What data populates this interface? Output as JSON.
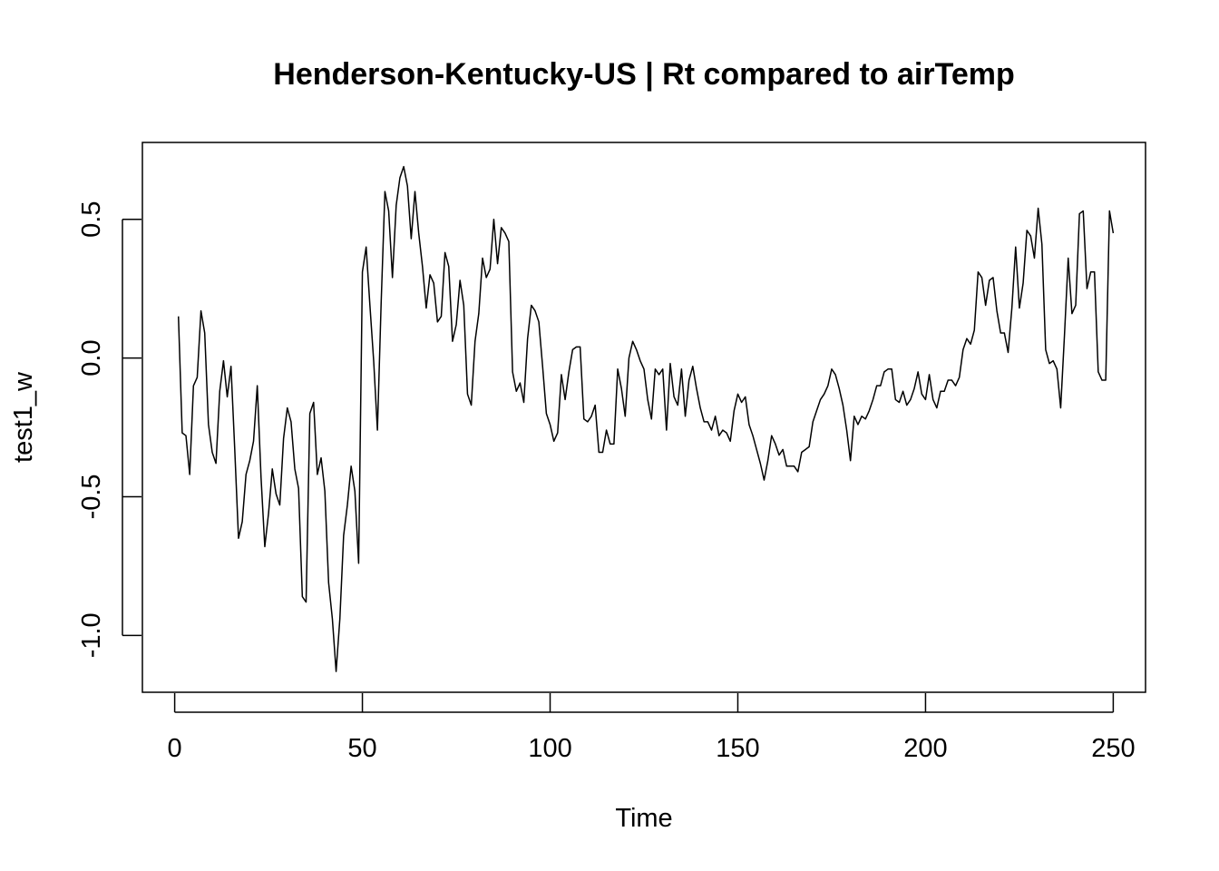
{
  "chart_data": {
    "type": "line",
    "title": "Henderson-Kentucky-US | Rt compared to airTemp",
    "xlabel": "Time",
    "ylabel": "test1_w",
    "xlim": [
      -8.6,
      258.6
    ],
    "ylim": [
      -1.205,
      0.777
    ],
    "x_ticks": [
      0,
      50,
      100,
      150,
      200,
      250
    ],
    "x_tick_labels": [
      "0",
      "50",
      "100",
      "150",
      "200",
      "250"
    ],
    "y_ticks": [
      -1.0,
      -0.5,
      0.0,
      0.5
    ],
    "y_tick_labels": [
      "-1.0",
      "-0.5",
      "0.0",
      "0.5"
    ],
    "grid": false,
    "legend": "none",
    "line_color": "#000000",
    "series": [
      {
        "values": [
          0.15,
          -0.27,
          -0.28,
          -0.42,
          -0.1,
          -0.07,
          0.17,
          0.09,
          -0.24,
          -0.34,
          -0.38,
          -0.12,
          -0.01,
          -0.14,
          -0.03,
          -0.33,
          -0.65,
          -0.59,
          -0.42,
          -0.37,
          -0.3,
          -0.1,
          -0.43,
          -0.68,
          -0.56,
          -0.4,
          -0.49,
          -0.53,
          -0.29,
          -0.18,
          -0.23,
          -0.4,
          -0.47,
          -0.86,
          -0.88,
          -0.2,
          -0.16,
          -0.42,
          -0.36,
          -0.48,
          -0.81,
          -0.94,
          -1.13,
          -0.94,
          -0.64,
          -0.53,
          -0.39,
          -0.48,
          -0.74,
          0.31,
          0.4,
          0.19,
          -0.01,
          -0.26,
          0.2,
          0.6,
          0.53,
          0.29,
          0.55,
          0.65,
          0.69,
          0.62,
          0.43,
          0.6,
          0.45,
          0.33,
          0.18,
          0.3,
          0.27,
          0.13,
          0.15,
          0.38,
          0.33,
          0.06,
          0.12,
          0.28,
          0.19,
          -0.13,
          -0.17,
          0.06,
          0.16,
          0.36,
          0.29,
          0.32,
          0.5,
          0.34,
          0.47,
          0.45,
          0.42,
          -0.05,
          -0.12,
          -0.09,
          -0.16,
          0.07,
          0.19,
          0.17,
          0.13,
          -0.03,
          -0.2,
          -0.24,
          -0.3,
          -0.27,
          -0.06,
          -0.15,
          -0.05,
          0.03,
          0.04,
          0.04,
          -0.22,
          -0.23,
          -0.21,
          -0.17,
          -0.34,
          -0.34,
          -0.26,
          -0.31,
          -0.31,
          -0.04,
          -0.11,
          -0.21,
          0.0,
          0.06,
          0.03,
          -0.01,
          -0.04,
          -0.15,
          -0.22,
          -0.04,
          -0.06,
          -0.04,
          -0.26,
          -0.02,
          -0.14,
          -0.17,
          -0.04,
          -0.21,
          -0.08,
          -0.03,
          -0.11,
          -0.18,
          -0.23,
          -0.23,
          -0.26,
          -0.21,
          -0.28,
          -0.26,
          -0.27,
          -0.3,
          -0.19,
          -0.13,
          -0.16,
          -0.14,
          -0.24,
          -0.28,
          -0.33,
          -0.38,
          -0.44,
          -0.37,
          -0.28,
          -0.31,
          -0.35,
          -0.33,
          -0.39,
          -0.39,
          -0.39,
          -0.41,
          -0.34,
          -0.33,
          -0.32,
          -0.23,
          -0.19,
          -0.15,
          -0.13,
          -0.1,
          -0.04,
          -0.06,
          -0.11,
          -0.17,
          -0.26,
          -0.37,
          -0.21,
          -0.24,
          -0.21,
          -0.22,
          -0.19,
          -0.15,
          -0.1,
          -0.1,
          -0.05,
          -0.04,
          -0.04,
          -0.15,
          -0.16,
          -0.12,
          -0.17,
          -0.15,
          -0.11,
          -0.05,
          -0.13,
          -0.15,
          -0.06,
          -0.15,
          -0.18,
          -0.12,
          -0.12,
          -0.08,
          -0.08,
          -0.1,
          -0.07,
          0.03,
          0.07,
          0.05,
          0.1,
          0.31,
          0.29,
          0.19,
          0.28,
          0.29,
          0.17,
          0.09,
          0.09,
          0.02,
          0.18,
          0.4,
          0.18,
          0.27,
          0.46,
          0.44,
          0.36,
          0.54,
          0.41,
          0.03,
          -0.02,
          -0.01,
          -0.04,
          -0.18,
          0.08,
          0.36,
          0.16,
          0.19,
          0.52,
          0.53,
          0.25,
          0.31,
          0.31,
          -0.05,
          -0.08,
          -0.08,
          0.53,
          0.45
        ]
      }
    ]
  }
}
